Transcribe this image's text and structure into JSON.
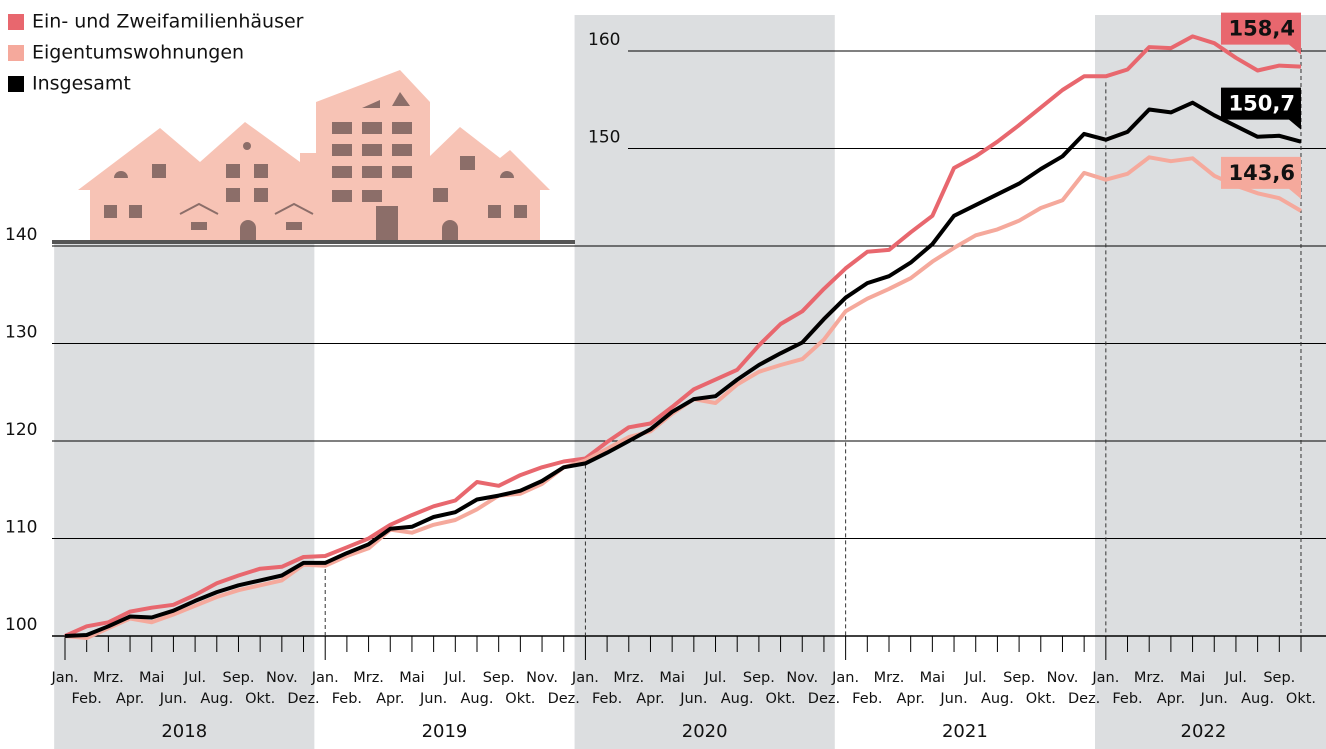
{
  "chart_data": {
    "type": "line",
    "categories": [
      "Jan.",
      "Feb.",
      "Mrz.",
      "Apr.",
      "Mai",
      "Jun.",
      "Jul.",
      "Aug.",
      "Sep.",
      "Okt.",
      "Nov.",
      "Dez.",
      "Jan.",
      "Feb.",
      "Mrz.",
      "Apr.",
      "Mai",
      "Jun.",
      "Jul.",
      "Aug.",
      "Sep.",
      "Okt.",
      "Nov.",
      "Dez.",
      "Jan.",
      "Feb.",
      "Mrz.",
      "Apr.",
      "Mai",
      "Jun.",
      "Jul.",
      "Aug.",
      "Sep.",
      "Okt.",
      "Nov.",
      "Dez.",
      "Jan.",
      "Feb.",
      "Mrz.",
      "Apr.",
      "Mai",
      "Jun.",
      "Jul.",
      "Aug.",
      "Sep.",
      "Okt.",
      "Nov.",
      "Dez.",
      "Jan.",
      "Feb.",
      "Mrz.",
      "Apr.",
      "Mai",
      "Jun.",
      "Jul.",
      "Aug.",
      "Sep.",
      "Okt."
    ],
    "years": [
      "2018",
      "2019",
      "2020",
      "2021",
      "2022"
    ],
    "ylim": [
      100,
      164
    ],
    "yticks": [
      100,
      110,
      120,
      130,
      140,
      150,
      160
    ],
    "grid": true,
    "legend": "top-left",
    "series": [
      {
        "name": "Ein- und Zweifamilienhäuser",
        "color": "#e8676e",
        "values": [
          100,
          101.0,
          101.4,
          102.5,
          102.9,
          103.2,
          104.2,
          105.4,
          106.2,
          106.9,
          107.1,
          108.1,
          108.2,
          109.1,
          110.0,
          111.4,
          112.4,
          113.3,
          113.9,
          115.8,
          115.4,
          116.5,
          117.3,
          117.9,
          118.2,
          119.9,
          121.4,
          121.8,
          123.5,
          125.3,
          126.3,
          127.3,
          129.8,
          132.0,
          133.3,
          135.6,
          137.7,
          139.4,
          139.6,
          141.4,
          143.1,
          148.0,
          149.2,
          150.7,
          152.4,
          154.2,
          156.0,
          157.4,
          157.4,
          158.1,
          160.4,
          160.3,
          161.5,
          160.8,
          159.3,
          158.0,
          158.5,
          158.4
        ],
        "value_labels": [
          null,
          null,
          null,
          null,
          null,
          null,
          null,
          null,
          null,
          null,
          null,
          null,
          null,
          null,
          null,
          null,
          null,
          null,
          null,
          null,
          null,
          null,
          null,
          null,
          null,
          null,
          null,
          null,
          null,
          null,
          null,
          null,
          null,
          null,
          null,
          null,
          null,
          null,
          null,
          null,
          null,
          null,
          null,
          null,
          null,
          null,
          null,
          null,
          null,
          null,
          null,
          null,
          null,
          null,
          null,
          null,
          null,
          "158,4"
        ]
      },
      {
        "name": "Eigentumswohnungen",
        "color": "#f5a99c",
        "values": [
          100,
          99.8,
          100.8,
          101.8,
          101.4,
          102.2,
          103.1,
          104.0,
          104.7,
          105.2,
          105.7,
          107.3,
          107.2,
          108.2,
          109.0,
          110.9,
          110.6,
          111.4,
          111.9,
          113.0,
          114.4,
          114.6,
          115.6,
          117.3,
          118.0,
          119.2,
          120.4,
          121.0,
          122.8,
          124.3,
          123.9,
          125.8,
          127.1,
          127.8,
          128.4,
          130.4,
          133.3,
          134.6,
          135.6,
          136.7,
          138.4,
          139.8,
          141.1,
          141.7,
          142.6,
          143.9,
          144.7,
          147.5,
          146.8,
          147.4,
          149.1,
          148.7,
          149.0,
          147.2,
          146.2,
          145.4,
          144.9,
          143.6
        ],
        "value_labels": [
          null,
          null,
          null,
          null,
          null,
          null,
          null,
          null,
          null,
          null,
          null,
          null,
          null,
          null,
          null,
          null,
          null,
          null,
          null,
          null,
          null,
          null,
          null,
          null,
          null,
          null,
          null,
          null,
          null,
          null,
          null,
          null,
          null,
          null,
          null,
          null,
          null,
          null,
          null,
          null,
          null,
          null,
          null,
          null,
          null,
          null,
          null,
          null,
          null,
          null,
          null,
          null,
          null,
          null,
          null,
          null,
          null,
          "143,6"
        ]
      },
      {
        "name": "Insgesamt",
        "color": "#000000",
        "values": [
          100,
          100.1,
          101.0,
          102.0,
          101.9,
          102.6,
          103.6,
          104.5,
          105.2,
          105.7,
          106.2,
          107.5,
          107.5,
          108.5,
          109.4,
          111.0,
          111.2,
          112.2,
          112.7,
          114.0,
          114.4,
          114.9,
          115.9,
          117.3,
          117.7,
          118.8,
          120.0,
          121.2,
          123.0,
          124.3,
          124.6,
          126.3,
          127.8,
          129.0,
          130.1,
          132.5,
          134.7,
          136.2,
          136.9,
          138.3,
          140.2,
          143.1,
          144.2,
          145.3,
          146.4,
          147.9,
          149.2,
          151.5,
          150.9,
          151.7,
          154.0,
          153.7,
          154.7,
          153.4,
          152.3,
          151.2,
          151.3,
          150.7
        ],
        "value_labels": [
          null,
          null,
          null,
          null,
          null,
          null,
          null,
          null,
          null,
          null,
          null,
          null,
          null,
          null,
          null,
          null,
          null,
          null,
          null,
          null,
          null,
          null,
          null,
          null,
          null,
          null,
          null,
          null,
          null,
          null,
          null,
          null,
          null,
          null,
          null,
          null,
          null,
          null,
          null,
          null,
          null,
          null,
          null,
          null,
          null,
          null,
          null,
          null,
          null,
          null,
          null,
          null,
          null,
          null,
          null,
          null,
          null,
          "150,7"
        ]
      }
    ]
  }
}
